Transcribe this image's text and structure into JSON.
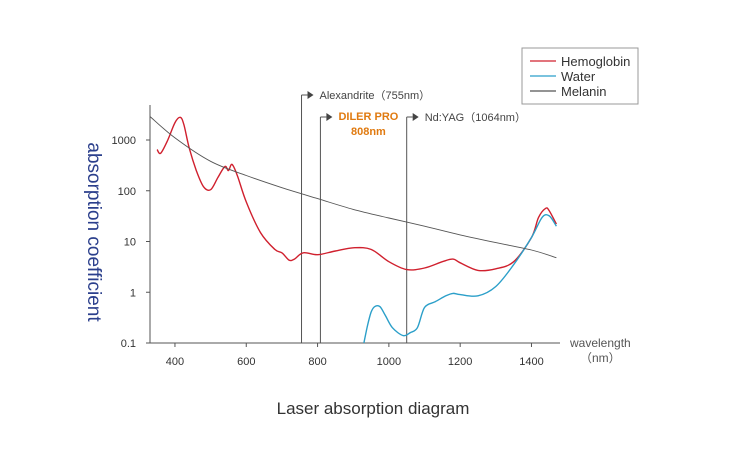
{
  "chart_data": {
    "type": "line",
    "title": "",
    "caption": "Laser absorption diagram",
    "xlabel": "wavelength",
    "xlabel_unit": "（nm）",
    "ylabel": "absorption coefficient",
    "xlim": [
      330,
      1480
    ],
    "ylim": [
      0.1,
      3000
    ],
    "yscale": "log",
    "x_ticks": [
      400,
      600,
      800,
      1000,
      1200,
      1400
    ],
    "y_ticks": [
      0.1,
      1,
      10,
      100,
      1000
    ],
    "y_tick_labels": [
      "0.1",
      "1",
      "10",
      "100",
      "1000"
    ],
    "grid": false,
    "legend_position": "top-right",
    "series": [
      {
        "name": "Hemoglobin",
        "color": "#d0202e",
        "x": [
          350,
          360,
          380,
          400,
          415,
          425,
          440,
          460,
          480,
          500,
          520,
          540,
          550,
          560,
          575,
          600,
          640,
          680,
          700,
          720,
          735,
          760,
          800,
          850,
          900,
          950,
          1000,
          1050,
          1100,
          1150,
          1180,
          1200,
          1250,
          1300,
          1350,
          1400,
          1420,
          1440,
          1450,
          1470
        ],
        "y": [
          650,
          550,
          1000,
          2200,
          2800,
          2000,
          700,
          250,
          120,
          105,
          180,
          300,
          250,
          330,
          200,
          60,
          15,
          7,
          6,
          4.3,
          4.5,
          6,
          5.5,
          6.5,
          7.5,
          7,
          4,
          2.8,
          3,
          4,
          4.5,
          3.8,
          2.7,
          2.9,
          4,
          12,
          30,
          45,
          40,
          22
        ]
      },
      {
        "name": "Water",
        "color": "#2b9fc9",
        "x": [
          930,
          940,
          950,
          960,
          975,
          990,
          1010,
          1040,
          1060,
          1080,
          1100,
          1130,
          1160,
          1180,
          1200,
          1250,
          1300,
          1350,
          1400,
          1430,
          1450,
          1470
        ],
        "y": [
          0.1,
          0.22,
          0.4,
          0.52,
          0.52,
          0.35,
          0.2,
          0.14,
          0.16,
          0.2,
          0.5,
          0.65,
          0.85,
          0.95,
          0.9,
          0.85,
          1.3,
          3.5,
          12,
          30,
          32,
          20
        ]
      },
      {
        "name": "Melanin",
        "color": "#555555",
        "x": [
          330,
          400,
          500,
          600,
          700,
          800,
          900,
          1000,
          1100,
          1200,
          1300,
          1400,
          1470
        ],
        "y": [
          2900,
          1100,
          380,
          200,
          115,
          70,
          43,
          29,
          20,
          13.5,
          9.5,
          6.8,
          4.8
        ]
      }
    ],
    "annotations": [
      {
        "label": "Alexandrite（755nm）",
        "x": 755,
        "highlight": false
      },
      {
        "label": "DILER PRO",
        "sublabel": "808nm",
        "x": 808,
        "highlight": true
      },
      {
        "label": "Nd:YAG（1064nm）",
        "x": 1050,
        "highlight": false
      }
    ]
  }
}
